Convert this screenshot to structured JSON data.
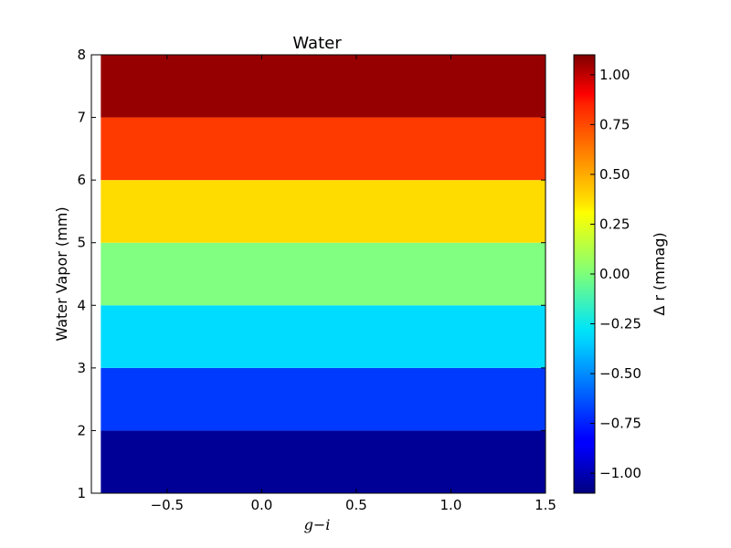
{
  "chart_data": {
    "type": "heatmap",
    "title": "Water",
    "xlabel": "g−i",
    "ylabel": "Water Vapor (mm)",
    "colorbar_label": "Δ r (mmag)",
    "colormap": "jet",
    "xlim": [
      -0.9,
      1.5
    ],
    "ylim": [
      1,
      8
    ],
    "x_ticks": [
      -0.5,
      0.0,
      0.5,
      1.0,
      1.5
    ],
    "x_tick_labels": [
      "−0.5",
      "0.0",
      "0.5",
      "1.0",
      "1.5"
    ],
    "y_ticks": [
      1,
      2,
      3,
      4,
      5,
      6,
      7,
      8
    ],
    "y_tick_labels": [
      "1",
      "2",
      "3",
      "4",
      "5",
      "6",
      "7",
      "8"
    ],
    "colorbar_range": [
      -1.1,
      1.1
    ],
    "colorbar_ticks": [
      1.0,
      0.75,
      0.5,
      0.25,
      0.0,
      -0.25,
      -0.5,
      -0.75,
      -1.0
    ],
    "colorbar_tick_labels": [
      "1.00",
      "0.75",
      "0.50",
      "0.25",
      "0.00",
      "−0.25",
      "−0.50",
      "−0.75",
      "−1.00"
    ],
    "bands": [
      {
        "y_from": 1,
        "y_to": 2,
        "value": -1.05
      },
      {
        "y_from": 2,
        "y_to": 3,
        "value": -0.7
      },
      {
        "y_from": 3,
        "y_to": 4,
        "value": -0.35
      },
      {
        "y_from": 4,
        "y_to": 5,
        "value": 0.0
      },
      {
        "y_from": 5,
        "y_to": 6,
        "value": 0.35
      },
      {
        "y_from": 6,
        "y_to": 7,
        "value": 0.7
      },
      {
        "y_from": 7,
        "y_to": 8,
        "value": 1.05
      }
    ],
    "x_data_min": -0.85,
    "x_data_max": 1.5,
    "grid": false
  }
}
